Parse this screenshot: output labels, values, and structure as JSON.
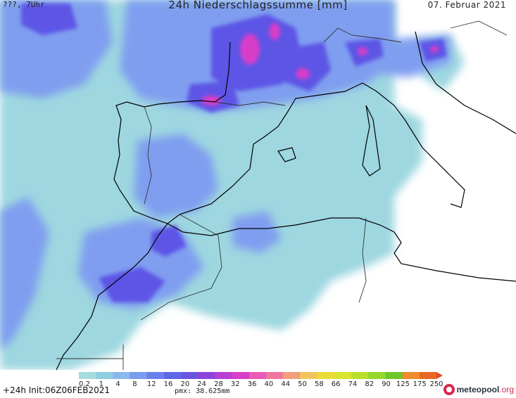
{
  "header": {
    "left": "???, 7Uhr",
    "title": "24h Niederschlagssumme [mm]",
    "date": "07. Februar 2021"
  },
  "footer": {
    "run": "+24h  Init:06Z06FEB2021",
    "pmx": "pmx: 38.625mm",
    "logo": "meteopool",
    "logo_tld": ".org"
  },
  "legend": {
    "ticks": [
      "0.2",
      "1",
      "4",
      "8",
      "12",
      "16",
      "20",
      "24",
      "28",
      "32",
      "36",
      "40",
      "44",
      "50",
      "58",
      "66",
      "74",
      "82",
      "90",
      "125",
      "175",
      "250"
    ],
    "colors": [
      "#a6dcdc",
      "#8fcde0",
      "#8ab8ec",
      "#7a9cee",
      "#6a80ec",
      "#5f68e6",
      "#6a55e0",
      "#8a44da",
      "#b83ed2",
      "#d93ec8",
      "#e85bb8",
      "#ee78a0",
      "#f1a07a",
      "#f3c45a",
      "#eadc38",
      "#d8e42e",
      "#b8e02c",
      "#96d82c",
      "#6cc82a",
      "#f08a2a",
      "#e56a24"
    ]
  },
  "colors": {
    "coast": "#000000",
    "land_border": "#333333",
    "sea_base": "#96d6dd",
    "rain_light": "#9ed7e0",
    "rain_mid": "#7f9ef0",
    "rain_high": "#5d55e6",
    "rain_peak": "#d93ec8"
  }
}
